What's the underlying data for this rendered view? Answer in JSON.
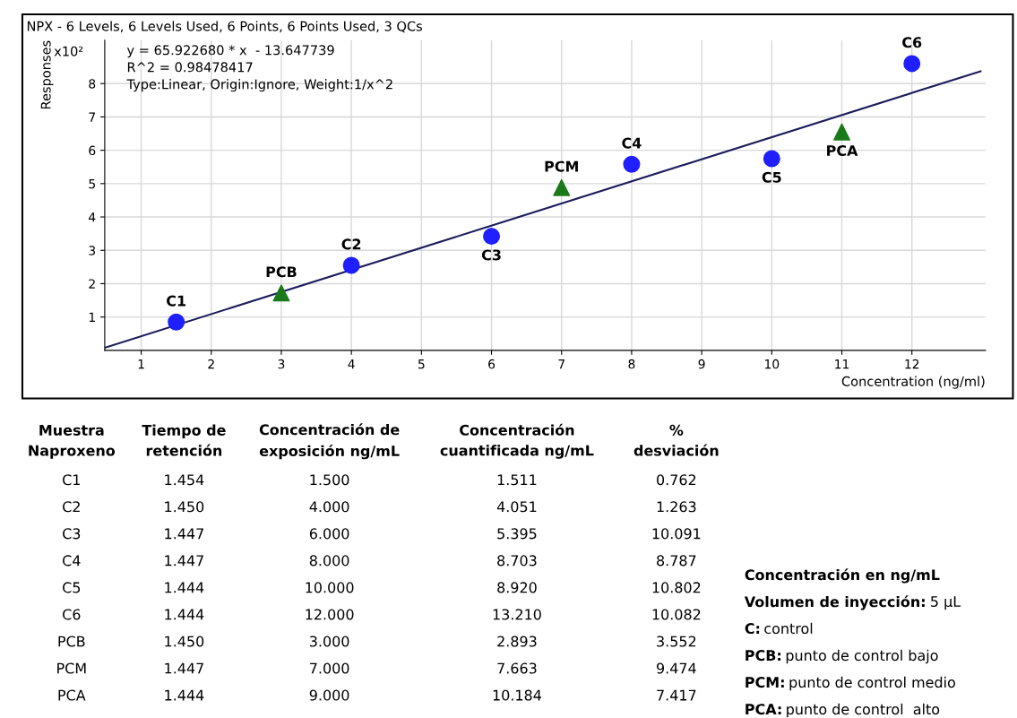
{
  "chart_data": [
    {
      "type": "scatter",
      "title": "NPX - 6 Levels, 6 Levels Used, 6 Points, 6 Points Used, 3 QCs",
      "xlabel": "Concentration (ng/ml)",
      "ylabel": "Responses",
      "xlim": [
        0.48,
        13.05
      ],
      "xticks": [
        1,
        2,
        3,
        4,
        5,
        6,
        7,
        8,
        9,
        10,
        11,
        12
      ],
      "ylim": [
        0,
        9.3
      ],
      "yticks": [
        1,
        2,
        3,
        4,
        5,
        6,
        7,
        8
      ],
      "grid": true,
      "series": [
        {
          "type": "line",
          "color": "#1c1c5c",
          "marker": "none",
          "x": [
            0.48,
            12.98
          ],
          "values": [
            0.08,
            8.37
          ]
        },
        {
          "type": "scatter",
          "color": "#1f1fff",
          "marker": "circle",
          "x": [
            1.5,
            4,
            6,
            8,
            10,
            12
          ],
          "values": [
            0.85,
            2.55,
            3.42,
            5.58,
            5.75,
            8.6
          ]
        },
        {
          "type": "scatter",
          "color": "#1a7a1a",
          "marker": "triangle",
          "x": [
            3,
            7,
            11
          ],
          "values": [
            1.72,
            4.88,
            6.55
          ]
        }
      ],
      "annotations": [
        "x10²",
        "y = 65.922680 * x  - 13.647739",
        "R^2 = 0.98478417",
        "Type:Linear, Origin:Ignore, Weight:1/x^2",
        {
          "text": "C1",
          "x": 1.5,
          "y": 0.85
        },
        {
          "text": "C2",
          "x": 4,
          "y": 2.55
        },
        {
          "text": "C3",
          "x": 6,
          "y": 3.42
        },
        {
          "text": "C4",
          "x": 8,
          "y": 5.58
        },
        {
          "text": "C5",
          "x": 10,
          "y": 5.75
        },
        {
          "text": "C6",
          "x": 12,
          "y": 8.6
        },
        {
          "text": "PCB",
          "x": 3,
          "y": 1.72
        },
        {
          "text": "PCM",
          "x": 7,
          "y": 4.88
        },
        {
          "text": "PCA",
          "x": 11,
          "y": 6.55
        }
      ]
    },
    {
      "type": "other",
      "categories": [
        "Muestra\nNaproxeno",
        "Tiempo de\nretención",
        "Concentración de\nexposición ng/mL",
        "Concentración\ncuantificada ng/mL",
        "%\ndesviación"
      ],
      "annotations": [
        "C1",
        "1.454",
        "1.500",
        "1.511",
        "0.762",
        "C2",
        "1.450",
        "4.000",
        "4.051",
        "1.263",
        "C3",
        "1.447",
        "6.000",
        "5.395",
        "10.091",
        "C4",
        "1.447",
        "8.000",
        "8.703",
        "8.787",
        "C5",
        "1.444",
        "10.000",
        "8.920",
        "10.802",
        "C6",
        "1.444",
        "12.000",
        "13.210",
        "10.082",
        "PCB",
        "1.450",
        "3.000",
        "2.893",
        "3.552",
        "PCM",
        "1.447",
        "7.000",
        "7.663",
        "9.474",
        "PCA",
        "1.444",
        "9.000",
        "10.184",
        "7.417"
      ]
    },
    {
      "type": "other",
      "annotations": [
        "Concentración en ng/mL",
        "Volumen de inyección: 5 µL",
        "C: control",
        "PCB: punto de control bajo",
        "PCM: punto de control medio",
        "PCA: punto de control  alto"
      ]
    }
  ]
}
